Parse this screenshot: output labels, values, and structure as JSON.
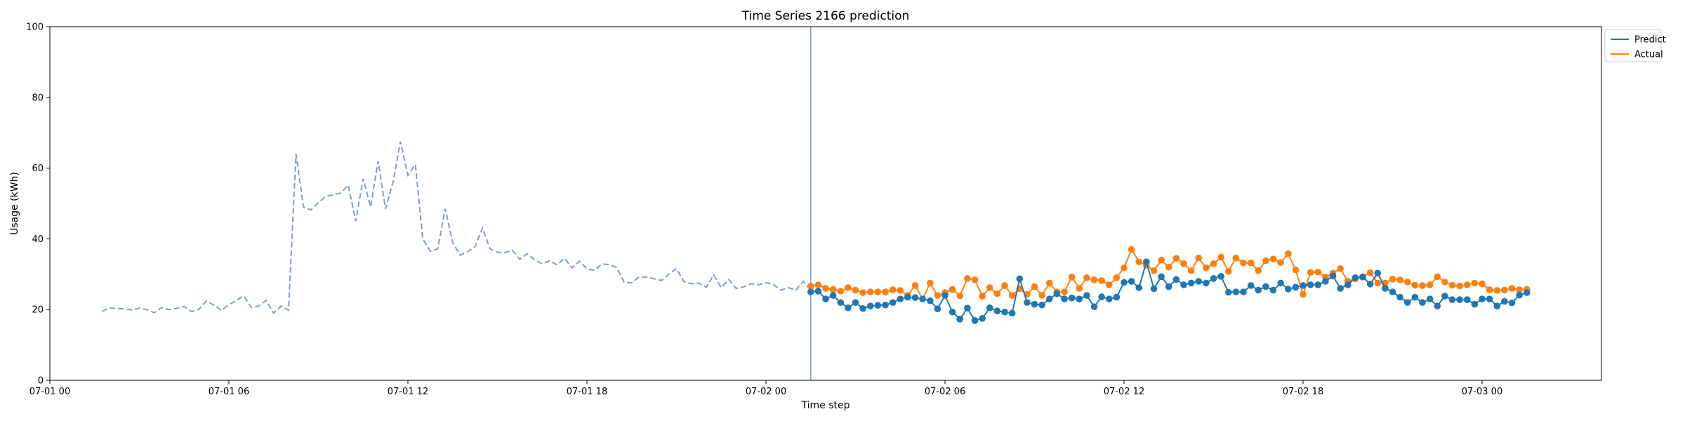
{
  "chart_data": {
    "type": "line",
    "title": "Time Series 2166 prediction",
    "xlabel": "Time step",
    "ylabel": "Usage (kWh)",
    "ylim": [
      0,
      100
    ],
    "yticks": [
      0,
      20,
      40,
      60,
      80,
      100
    ],
    "x_axis": {
      "start": "07-01 00:00",
      "end": "07-03 04:00",
      "tick_labels": [
        "07-01 00",
        "07-01 06",
        "07-01 12",
        "07-01 18",
        "07-02 00",
        "07-02 06",
        "07-02 12",
        "07-02 18",
        "07-03 00"
      ]
    },
    "grid": false,
    "legend": {
      "position": "top-right",
      "entries": [
        {
          "label": "Predict",
          "color": "#1f77b4"
        },
        {
          "label": "Actual",
          "color": "#ff7f0e"
        }
      ]
    },
    "forecast_start": "07-02 01:30",
    "history": {
      "color": "#7f9cc8",
      "style": "dashed",
      "x": [
        "07-01 01:45",
        "07-01 02:00",
        "07-01 02:15",
        "07-01 02:30",
        "07-01 02:45",
        "07-01 03:00",
        "07-01 03:15",
        "07-01 03:30",
        "07-01 03:45",
        "07-01 04:00",
        "07-01 04:15",
        "07-01 04:30",
        "07-01 04:45",
        "07-01 05:00",
        "07-01 05:15",
        "07-01 05:30",
        "07-01 05:45",
        "07-01 06:00",
        "07-01 06:15",
        "07-01 06:30",
        "07-01 06:45",
        "07-01 07:00",
        "07-01 07:15",
        "07-01 07:30",
        "07-01 07:45",
        "07-01 08:00",
        "07-01 08:15",
        "07-01 08:30",
        "07-01 08:45",
        "07-01 09:00",
        "07-01 09:15",
        "07-01 09:30",
        "07-01 09:45",
        "07-01 10:00",
        "07-01 10:15",
        "07-01 10:30",
        "07-01 10:45",
        "07-01 11:00",
        "07-01 11:15",
        "07-01 11:30",
        "07-01 11:45",
        "07-01 12:00",
        "07-01 12:15",
        "07-01 12:30",
        "07-01 12:45",
        "07-01 13:00",
        "07-01 13:15",
        "07-01 13:30",
        "07-01 13:45",
        "07-01 14:00",
        "07-01 14:15",
        "07-01 14:30",
        "07-01 14:45",
        "07-01 15:00",
        "07-01 15:15",
        "07-01 15:30",
        "07-01 15:45",
        "07-01 16:00",
        "07-01 16:15",
        "07-01 16:30",
        "07-01 16:45",
        "07-01 17:00",
        "07-01 17:15",
        "07-01 17:30",
        "07-01 17:45",
        "07-01 18:00",
        "07-01 18:15",
        "07-01 18:30",
        "07-01 18:45",
        "07-01 19:00",
        "07-01 19:15",
        "07-01 19:30",
        "07-01 19:45",
        "07-01 20:00",
        "07-01 20:15",
        "07-01 20:30",
        "07-01 20:45",
        "07-01 21:00",
        "07-01 21:15",
        "07-01 21:30",
        "07-01 21:45",
        "07-01 22:00",
        "07-01 22:15",
        "07-01 22:30",
        "07-01 22:45",
        "07-01 23:00",
        "07-01 23:15",
        "07-01 23:30",
        "07-01 23:45",
        "07-02 00:00",
        "07-02 00:15",
        "07-02 00:30",
        "07-02 00:45",
        "07-02 01:00",
        "07-02 01:15",
        "07-02 01:30"
      ],
      "values": [
        19.5,
        20.5,
        20.3,
        20.2,
        19.9,
        20.4,
        20.0,
        19.1,
        20.6,
        20.0,
        20.3,
        20.9,
        19.4,
        20.1,
        22.5,
        21.2,
        19.8,
        21.4,
        22.6,
        23.9,
        20.6,
        21.0,
        22.6,
        19.0,
        21.0,
        19.8,
        64.0,
        49.0,
        48.2,
        50.3,
        52.0,
        52.4,
        53.0,
        55.2,
        45.0,
        57.0,
        49.0,
        62.0,
        48.5,
        56.0,
        67.5,
        58.0,
        61.0,
        40.0,
        36.5,
        37.2,
        48.5,
        39.0,
        35.4,
        36.3,
        37.8,
        43.1,
        37.2,
        36.2,
        36.1,
        36.8,
        34.2,
        35.8,
        34.1,
        32.9,
        33.8,
        32.6,
        34.5,
        31.8,
        33.7,
        31.5,
        31.1,
        32.9,
        32.7,
        31.9,
        27.6,
        27.6,
        29.2,
        29.2,
        28.7,
        28.2,
        30.1,
        31.6,
        27.9,
        27.3,
        27.5,
        26.3,
        29.8,
        26.2,
        28.5,
        26.0,
        26.4,
        27.3,
        27.0,
        27.6,
        27.1,
        25.5,
        26.2,
        25.5,
        28.0,
        25.4
      ]
    },
    "series": [
      {
        "name": "Predict",
        "color": "#1f77b4",
        "x_start": "07-02 01:30",
        "x_step_minutes": 15,
        "values": [
          25.0,
          25.2,
          23.0,
          24.0,
          22.0,
          20.5,
          22.0,
          20.3,
          21.0,
          21.2,
          21.3,
          22.0,
          23.0,
          23.5,
          23.4,
          23.0,
          22.5,
          20.2,
          24.0,
          19.3,
          17.3,
          20.4,
          16.9,
          17.5,
          20.5,
          19.6,
          19.3,
          19.0,
          28.7,
          22.0,
          21.5,
          21.3,
          23.0,
          24.5,
          23.0,
          23.3,
          23.0,
          24.0,
          20.8,
          23.6,
          23.0,
          23.5,
          27.7,
          28.0,
          26.2,
          33.5,
          25.9,
          29.3,
          26.5,
          28.5,
          27.0,
          27.5,
          28.0,
          27.5,
          28.8,
          29.4,
          24.9,
          25.0,
          25.0,
          26.8,
          25.5,
          26.5,
          25.5,
          27.5,
          25.8,
          26.3,
          26.8,
          27.0,
          27.0,
          28.0,
          29.5,
          26.0,
          27.0,
          29.0,
          29.2,
          27.2,
          30.3,
          26.0,
          25.0,
          23.5,
          22.0,
          23.5,
          22.0,
          23.0,
          21.0,
          23.8,
          22.8,
          22.8,
          22.8,
          21.5,
          23.0,
          23.0,
          21.0,
          22.3,
          21.9,
          24.1,
          24.8
        ]
      },
      {
        "name": "Actual",
        "color": "#ff7f0e",
        "x_start": "07-02 01:30",
        "x_step_minutes": 15,
        "values": [
          26.6,
          27.0,
          26.0,
          25.7,
          25.2,
          26.2,
          25.5,
          24.8,
          25.0,
          25.0,
          25.0,
          25.6,
          25.4,
          24.0,
          26.8,
          23.0,
          27.5,
          24.0,
          24.8,
          25.7,
          23.9,
          28.8,
          28.4,
          23.8,
          26.2,
          24.5,
          26.8,
          24.0,
          25.9,
          24.3,
          26.5,
          24.0,
          27.5,
          25.0,
          25.0,
          29.2,
          26.0,
          29.0,
          28.4,
          28.2,
          27.0,
          29.0,
          31.8,
          37.0,
          33.5,
          32.5,
          31.0,
          34.0,
          32.0,
          34.5,
          33.0,
          31.0,
          34.6,
          31.8,
          33.0,
          34.8,
          30.8,
          34.6,
          33.2,
          33.2,
          31.0,
          33.8,
          34.3,
          33.3,
          35.8,
          31.2,
          24.3,
          30.5,
          30.6,
          29.2,
          30.3,
          31.6,
          28.0,
          28.7,
          29.3,
          30.4,
          27.5,
          27.5,
          28.6,
          28.4,
          27.8,
          26.9,
          26.8,
          27.0,
          29.3,
          27.8,
          26.9,
          26.7,
          27.0,
          27.5,
          27.3,
          25.6,
          25.4,
          25.5,
          26.0,
          25.6,
          25.7
        ]
      }
    ]
  }
}
